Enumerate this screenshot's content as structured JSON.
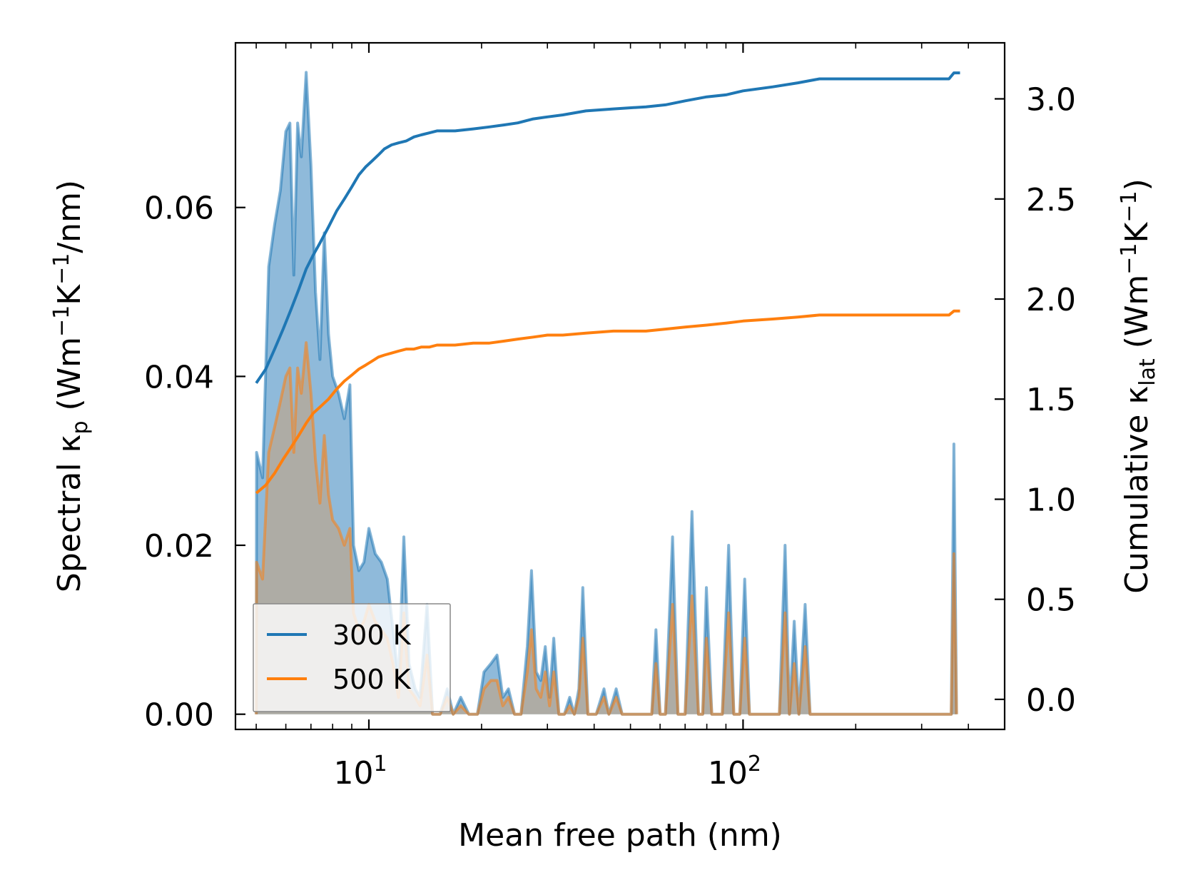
{
  "chart_data": {
    "type": "line",
    "xscale": "log",
    "xlim": [
      4.4,
      500
    ],
    "xlabel": "Mean free path (nm)",
    "x_ticks": [
      {
        "value": 10,
        "label": "10",
        "exp": "1"
      },
      {
        "value": 100,
        "label": "10",
        "exp": "2"
      }
    ],
    "left_axis": {
      "label_parts": [
        "Spectral κ",
        "p",
        " (Wm",
        "−1",
        "K",
        "−1",
        "/nm)"
      ],
      "ylim": [
        -0.0018,
        0.0795
      ],
      "ticks": [
        0.0,
        0.02,
        0.04,
        0.06
      ],
      "tick_labels": [
        "0.00",
        "0.02",
        "0.04",
        "0.06"
      ]
    },
    "right_axis": {
      "label_parts": [
        "Cumulative κ",
        "lat",
        " (Wm",
        "−1",
        "K",
        "−1",
        ")"
      ],
      "ylim": [
        -0.15,
        3.28
      ],
      "ticks": [
        0.0,
        0.5,
        1.0,
        1.5,
        2.0,
        2.5,
        3.0
      ],
      "tick_labels": [
        "0.0",
        "0.5",
        "1.0",
        "1.5",
        "2.0",
        "2.5",
        "3.0"
      ]
    },
    "legend": {
      "position": "lower-left",
      "entries": [
        "300 K",
        "500 K"
      ]
    },
    "series": [
      {
        "name": "300 K",
        "color": "#1f77b4",
        "fill_color": "#4a90c4",
        "spectral": [
          [
            5.0,
            0.0
          ],
          [
            5.01,
            0.031
          ],
          [
            5.2,
            0.028
          ],
          [
            5.4,
            0.053
          ],
          [
            5.6,
            0.058
          ],
          [
            5.8,
            0.062
          ],
          [
            6.0,
            0.069
          ],
          [
            6.15,
            0.07
          ],
          [
            6.3,
            0.052
          ],
          [
            6.45,
            0.07
          ],
          [
            6.6,
            0.066
          ],
          [
            6.8,
            0.076
          ],
          [
            7.0,
            0.065
          ],
          [
            7.2,
            0.05
          ],
          [
            7.4,
            0.042
          ],
          [
            7.6,
            0.057
          ],
          [
            7.8,
            0.045
          ],
          [
            8.0,
            0.04
          ],
          [
            8.3,
            0.038
          ],
          [
            8.6,
            0.035
          ],
          [
            8.9,
            0.039
          ],
          [
            9.1,
            0.02
          ],
          [
            9.4,
            0.017
          ],
          [
            9.7,
            0.018
          ],
          [
            10.0,
            0.022
          ],
          [
            10.4,
            0.019
          ],
          [
            10.8,
            0.018
          ],
          [
            11.2,
            0.016
          ],
          [
            11.6,
            0.01
          ],
          [
            12.0,
            0.004
          ],
          [
            12.4,
            0.021
          ],
          [
            12.8,
            0.006
          ],
          [
            13.3,
            0.003
          ],
          [
            13.7,
            0.002
          ],
          [
            14.3,
            0.013
          ],
          [
            14.8,
            0.0
          ],
          [
            15.5,
            0.0
          ],
          [
            16.2,
            0.003
          ],
          [
            16.8,
            0.0
          ],
          [
            17.6,
            0.002
          ],
          [
            18.5,
            0.0
          ],
          [
            19.5,
            0.0
          ],
          [
            20.3,
            0.005
          ],
          [
            21.2,
            0.006
          ],
          [
            22.0,
            0.007
          ],
          [
            22.8,
            0.002
          ],
          [
            23.6,
            0.003
          ],
          [
            24.5,
            0.0
          ],
          [
            25.5,
            0.0
          ],
          [
            26.5,
            0.008
          ],
          [
            27.2,
            0.017
          ],
          [
            28.0,
            0.005
          ],
          [
            28.8,
            0.004
          ],
          [
            29.6,
            0.008
          ],
          [
            30.4,
            0.002
          ],
          [
            31.2,
            0.009
          ],
          [
            32.2,
            0.0
          ],
          [
            33.3,
            0.0
          ],
          [
            34.4,
            0.002
          ],
          [
            35.4,
            0.0
          ],
          [
            36.4,
            0.003
          ],
          [
            37.3,
            0.015
          ],
          [
            38.5,
            0.0
          ],
          [
            40.5,
            0.0
          ],
          [
            42.5,
            0.003
          ],
          [
            43.8,
            0.0
          ],
          [
            45.8,
            0.003
          ],
          [
            47.5,
            0.0
          ],
          [
            57.0,
            0.0
          ],
          [
            58.5,
            0.01
          ],
          [
            60.0,
            0.0
          ],
          [
            62.0,
            0.0
          ],
          [
            64.8,
            0.021
          ],
          [
            67.0,
            0.0
          ],
          [
            70.0,
            0.0
          ],
          [
            73.0,
            0.024
          ],
          [
            76.0,
            0.0
          ],
          [
            78.0,
            0.0
          ],
          [
            79.8,
            0.015
          ],
          [
            82.5,
            0.0
          ],
          [
            88.0,
            0.0
          ],
          [
            91.5,
            0.02
          ],
          [
            94.5,
            0.0
          ],
          [
            98.0,
            0.0
          ],
          [
            101.0,
            0.016
          ],
          [
            104.0,
            0.0
          ],
          [
            125.0,
            0.0
          ],
          [
            129.5,
            0.02
          ],
          [
            133.0,
            0.0
          ],
          [
            137.0,
            0.011
          ],
          [
            141.0,
            0.0
          ],
          [
            146.5,
            0.013
          ],
          [
            151.0,
            0.0
          ],
          [
            360.0,
            0.0
          ],
          [
            366.0,
            0.032
          ],
          [
            372.0,
            0.0
          ]
        ],
        "cumulative": [
          [
            5.0,
            1.58
          ],
          [
            5.3,
            1.65
          ],
          [
            5.6,
            1.75
          ],
          [
            5.9,
            1.85
          ],
          [
            6.2,
            1.95
          ],
          [
            6.5,
            2.05
          ],
          [
            6.8,
            2.15
          ],
          [
            7.1,
            2.22
          ],
          [
            7.4,
            2.28
          ],
          [
            7.8,
            2.36
          ],
          [
            8.2,
            2.44
          ],
          [
            8.6,
            2.5
          ],
          [
            9.0,
            2.56
          ],
          [
            9.4,
            2.62
          ],
          [
            9.8,
            2.66
          ],
          [
            10.2,
            2.69
          ],
          [
            10.6,
            2.72
          ],
          [
            11.0,
            2.75
          ],
          [
            11.5,
            2.77
          ],
          [
            12.0,
            2.78
          ],
          [
            12.6,
            2.79
          ],
          [
            13.2,
            2.81
          ],
          [
            13.8,
            2.82
          ],
          [
            14.5,
            2.83
          ],
          [
            15.2,
            2.84
          ],
          [
            17.0,
            2.84
          ],
          [
            19.0,
            2.85
          ],
          [
            21.0,
            2.86
          ],
          [
            23.0,
            2.87
          ],
          [
            25.0,
            2.88
          ],
          [
            27.5,
            2.9
          ],
          [
            30.0,
            2.91
          ],
          [
            33.0,
            2.92
          ],
          [
            38.0,
            2.94
          ],
          [
            45.0,
            2.95
          ],
          [
            55.0,
            2.96
          ],
          [
            62.0,
            2.97
          ],
          [
            70.0,
            2.99
          ],
          [
            80.0,
            3.01
          ],
          [
            90.0,
            3.02
          ],
          [
            100.0,
            3.04
          ],
          [
            120.0,
            3.06
          ],
          [
            140.0,
            3.08
          ],
          [
            160.0,
            3.1
          ],
          [
            250.0,
            3.1
          ],
          [
            355.0,
            3.1
          ],
          [
            366.0,
            3.13
          ],
          [
            380.0,
            3.13
          ]
        ]
      },
      {
        "name": "500 K",
        "color": "#ff7f0e",
        "fill_color": "#c9a17a",
        "spectral": [
          [
            5.0,
            0.0
          ],
          [
            5.01,
            0.018
          ],
          [
            5.2,
            0.016
          ],
          [
            5.4,
            0.031
          ],
          [
            5.6,
            0.034
          ],
          [
            5.8,
            0.037
          ],
          [
            6.0,
            0.04
          ],
          [
            6.15,
            0.041
          ],
          [
            6.3,
            0.031
          ],
          [
            6.45,
            0.041
          ],
          [
            6.6,
            0.038
          ],
          [
            6.8,
            0.044
          ],
          [
            7.0,
            0.038
          ],
          [
            7.2,
            0.03
          ],
          [
            7.4,
            0.025
          ],
          [
            7.6,
            0.033
          ],
          [
            7.8,
            0.026
          ],
          [
            8.0,
            0.023
          ],
          [
            8.3,
            0.022
          ],
          [
            8.6,
            0.02
          ],
          [
            8.9,
            0.022
          ],
          [
            9.1,
            0.012
          ],
          [
            9.4,
            0.01
          ],
          [
            9.7,
            0.011
          ],
          [
            10.0,
            0.013
          ],
          [
            10.4,
            0.011
          ],
          [
            10.8,
            0.01
          ],
          [
            11.2,
            0.009
          ],
          [
            11.6,
            0.006
          ],
          [
            12.0,
            0.002
          ],
          [
            12.4,
            0.012
          ],
          [
            12.8,
            0.003
          ],
          [
            13.3,
            0.002
          ],
          [
            13.7,
            0.001
          ],
          [
            14.3,
            0.007
          ],
          [
            14.8,
            0.0
          ],
          [
            15.5,
            0.0
          ],
          [
            16.2,
            0.002
          ],
          [
            16.8,
            0.0
          ],
          [
            17.6,
            0.001
          ],
          [
            18.5,
            0.0
          ],
          [
            19.5,
            0.0
          ],
          [
            20.3,
            0.003
          ],
          [
            21.2,
            0.004
          ],
          [
            22.0,
            0.004
          ],
          [
            22.8,
            0.001
          ],
          [
            23.6,
            0.002
          ],
          [
            24.5,
            0.0
          ],
          [
            25.5,
            0.0
          ],
          [
            26.5,
            0.005
          ],
          [
            27.2,
            0.01
          ],
          [
            28.0,
            0.003
          ],
          [
            28.8,
            0.002
          ],
          [
            29.6,
            0.005
          ],
          [
            30.4,
            0.001
          ],
          [
            31.2,
            0.005
          ],
          [
            32.2,
            0.0
          ],
          [
            33.3,
            0.0
          ],
          [
            34.4,
            0.001
          ],
          [
            35.4,
            0.0
          ],
          [
            36.4,
            0.002
          ],
          [
            37.3,
            0.009
          ],
          [
            38.5,
            0.0
          ],
          [
            40.5,
            0.0
          ],
          [
            42.5,
            0.002
          ],
          [
            43.8,
            0.0
          ],
          [
            45.8,
            0.002
          ],
          [
            47.5,
            0.0
          ],
          [
            57.0,
            0.0
          ],
          [
            58.5,
            0.006
          ],
          [
            60.0,
            0.0
          ],
          [
            62.0,
            0.0
          ],
          [
            64.8,
            0.013
          ],
          [
            67.0,
            0.0
          ],
          [
            70.0,
            0.0
          ],
          [
            73.0,
            0.014
          ],
          [
            76.0,
            0.0
          ],
          [
            78.0,
            0.0
          ],
          [
            79.8,
            0.009
          ],
          [
            82.5,
            0.0
          ],
          [
            88.0,
            0.0
          ],
          [
            91.5,
            0.012
          ],
          [
            94.5,
            0.0
          ],
          [
            98.0,
            0.0
          ],
          [
            101.0,
            0.009
          ],
          [
            104.0,
            0.0
          ],
          [
            125.0,
            0.0
          ],
          [
            129.5,
            0.012
          ],
          [
            133.0,
            0.0
          ],
          [
            137.0,
            0.006
          ],
          [
            141.0,
            0.0
          ],
          [
            146.5,
            0.008
          ],
          [
            151.0,
            0.0
          ],
          [
            360.0,
            0.0
          ],
          [
            366.0,
            0.019
          ],
          [
            372.0,
            0.0
          ]
        ],
        "cumulative": [
          [
            5.0,
            1.03
          ],
          [
            5.3,
            1.07
          ],
          [
            5.6,
            1.13
          ],
          [
            5.9,
            1.2
          ],
          [
            6.2,
            1.26
          ],
          [
            6.5,
            1.32
          ],
          [
            6.8,
            1.38
          ],
          [
            7.1,
            1.43
          ],
          [
            7.4,
            1.46
          ],
          [
            7.8,
            1.5
          ],
          [
            8.2,
            1.55
          ],
          [
            8.6,
            1.59
          ],
          [
            9.0,
            1.62
          ],
          [
            9.4,
            1.65
          ],
          [
            9.8,
            1.67
          ],
          [
            10.2,
            1.69
          ],
          [
            10.6,
            1.71
          ],
          [
            11.0,
            1.72
          ],
          [
            11.5,
            1.73
          ],
          [
            12.0,
            1.74
          ],
          [
            12.6,
            1.75
          ],
          [
            13.2,
            1.75
          ],
          [
            13.8,
            1.76
          ],
          [
            14.5,
            1.76
          ],
          [
            15.2,
            1.77
          ],
          [
            17.0,
            1.77
          ],
          [
            19.0,
            1.78
          ],
          [
            21.0,
            1.78
          ],
          [
            23.0,
            1.79
          ],
          [
            25.0,
            1.8
          ],
          [
            27.5,
            1.81
          ],
          [
            30.0,
            1.82
          ],
          [
            33.0,
            1.82
          ],
          [
            38.0,
            1.83
          ],
          [
            45.0,
            1.84
          ],
          [
            55.0,
            1.84
          ],
          [
            62.0,
            1.85
          ],
          [
            70.0,
            1.86
          ],
          [
            80.0,
            1.87
          ],
          [
            90.0,
            1.88
          ],
          [
            100.0,
            1.89
          ],
          [
            120.0,
            1.9
          ],
          [
            140.0,
            1.91
          ],
          [
            160.0,
            1.92
          ],
          [
            250.0,
            1.92
          ],
          [
            355.0,
            1.92
          ],
          [
            366.0,
            1.94
          ],
          [
            380.0,
            1.94
          ]
        ]
      }
    ]
  }
}
